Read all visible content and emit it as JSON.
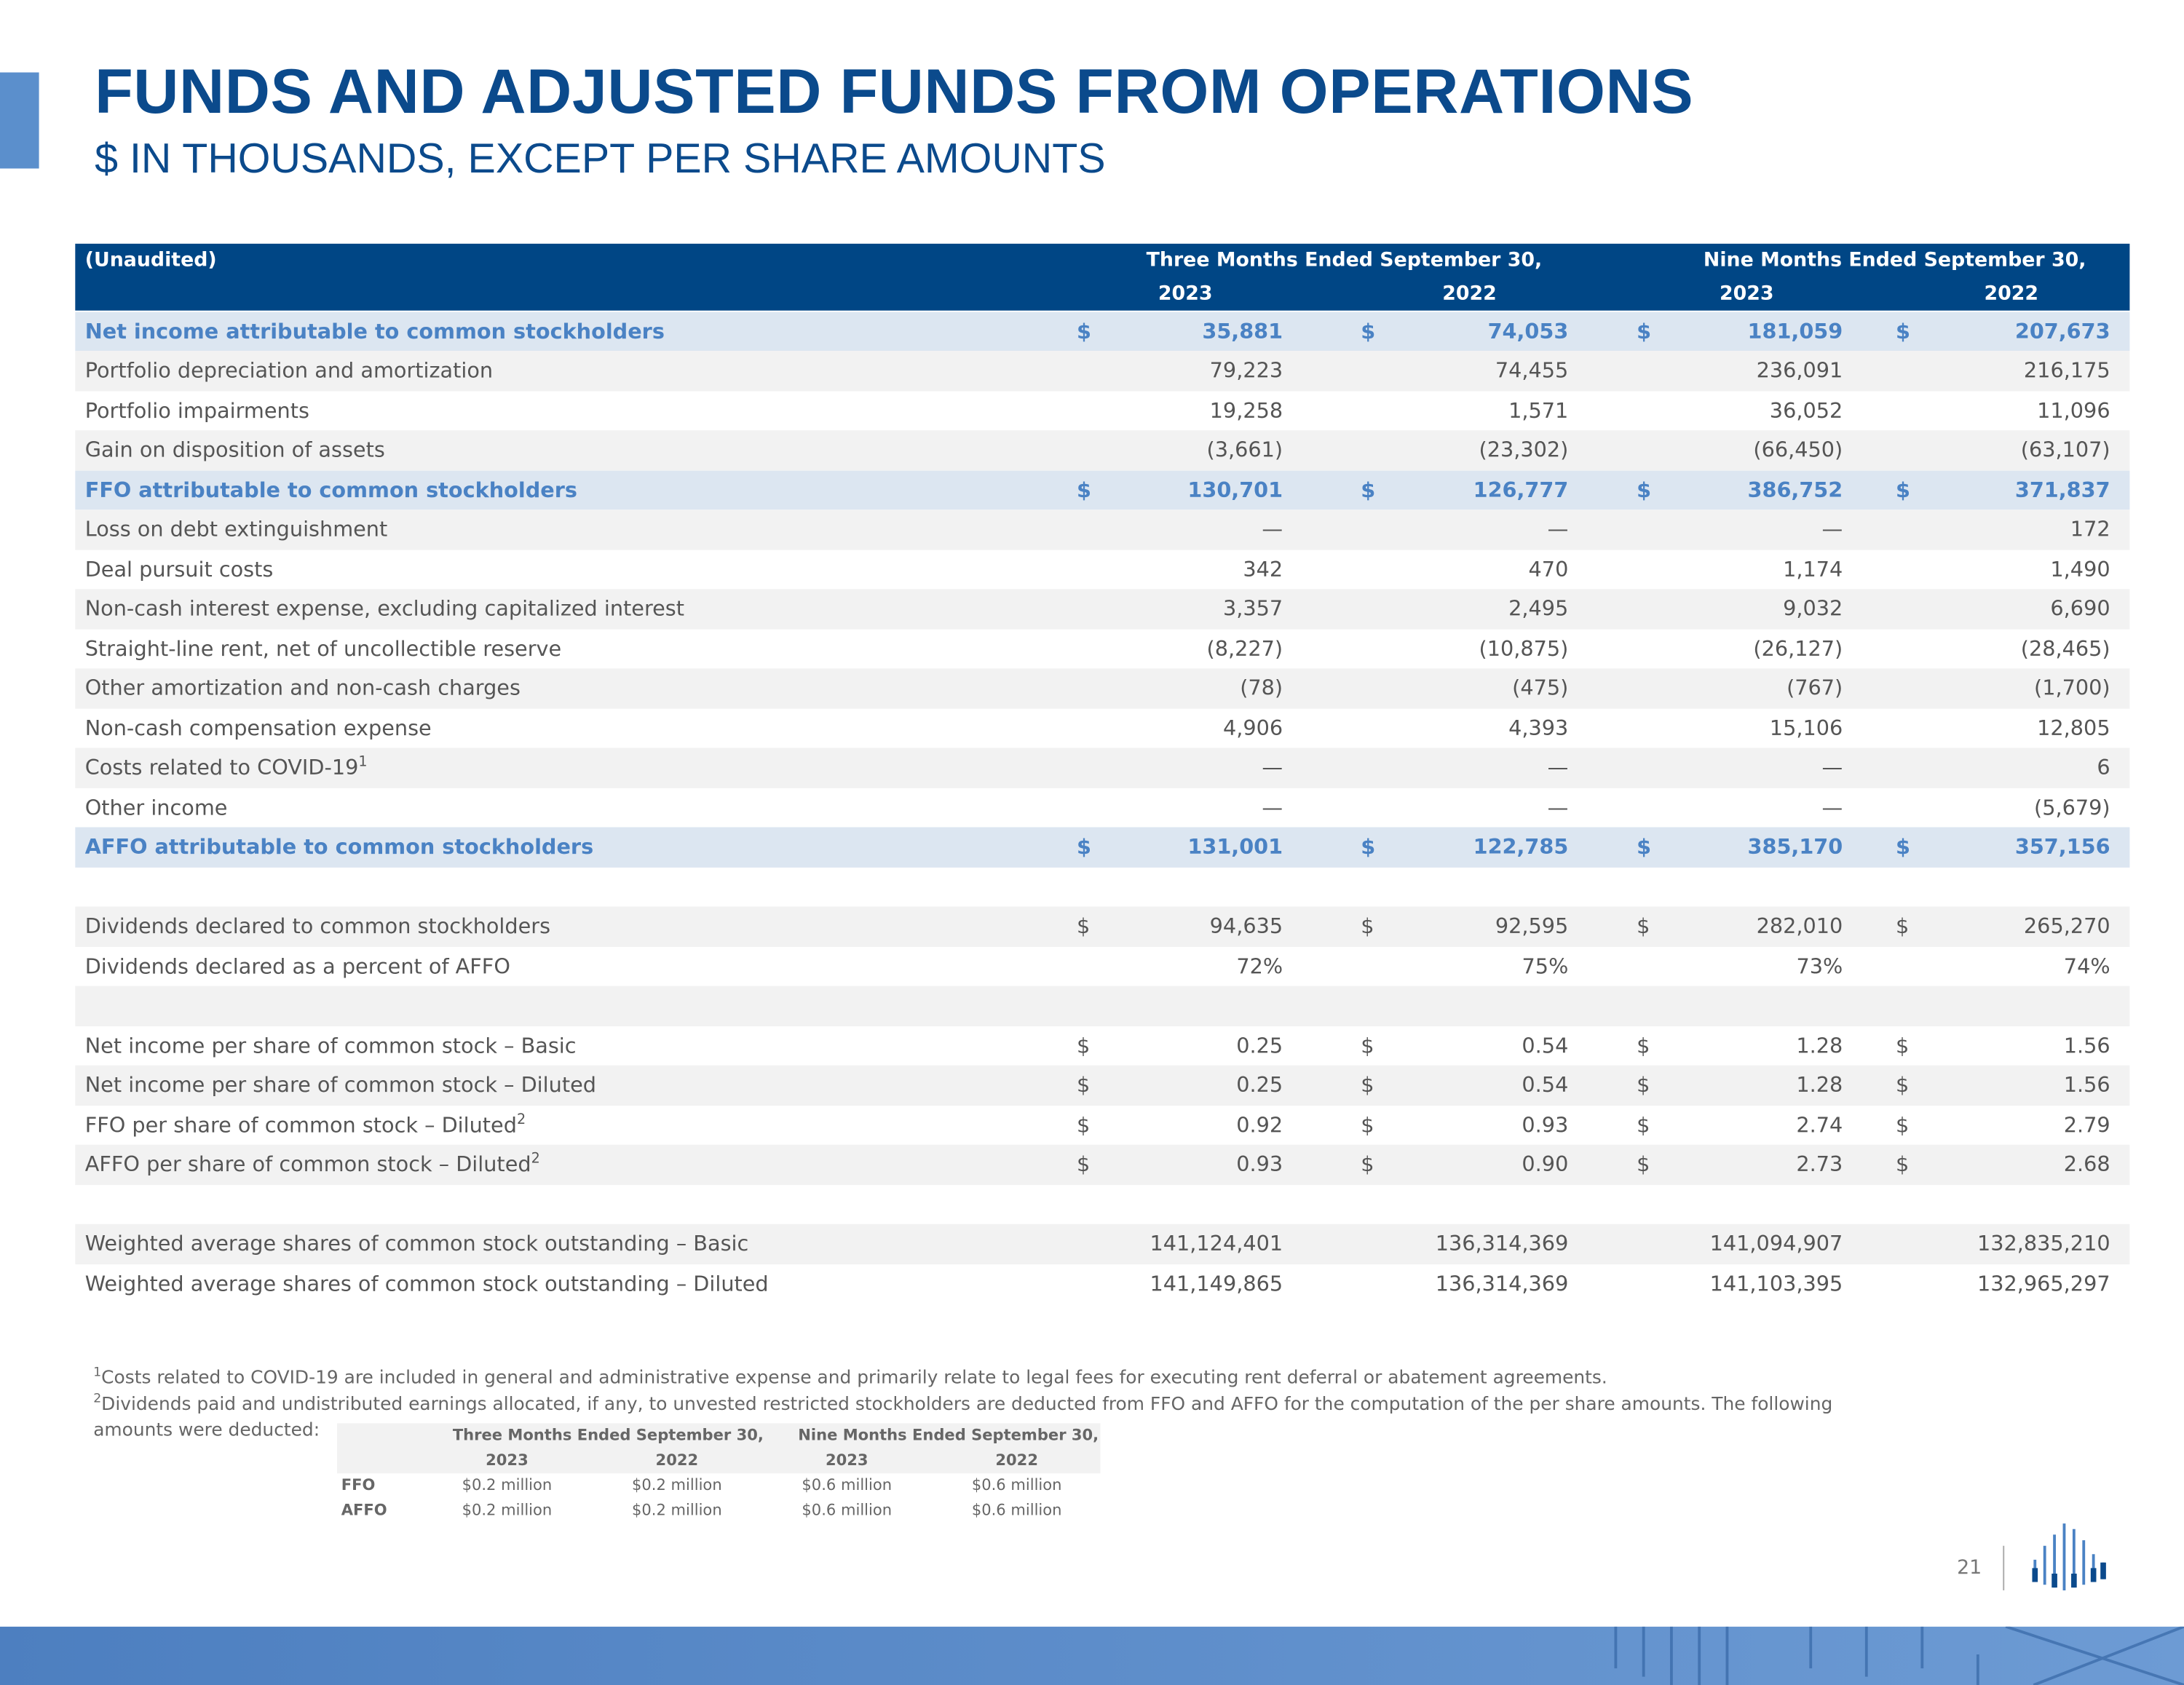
{
  "header": {
    "title": "FUNDS AND ADJUSTED FUNDS FROM OPERATIONS",
    "subtitle": "$ IN THOUSANDS, EXCEPT PER SHARE AMOUNTS"
  },
  "table": {
    "corner": "(Unaudited)",
    "groups": [
      "Three Months Ended September 30,",
      "Nine Months Ended September 30,"
    ],
    "years": [
      "2023",
      "2022",
      "2023",
      "2022"
    ],
    "rows": [
      {
        "label": "Net income attributable to common stockholders",
        "highlight": true,
        "currency": "$",
        "values": [
          "35,881",
          "74,053",
          "181,059",
          "207,673"
        ]
      },
      {
        "label": "Portfolio depreciation and amortization",
        "values": [
          "79,223",
          "74,455",
          "236,091",
          "216,175"
        ]
      },
      {
        "label": "Portfolio impairments",
        "values": [
          "19,258",
          "1,571",
          "36,052",
          "11,096"
        ]
      },
      {
        "label": "Gain on disposition of assets",
        "values": [
          "(3,661)",
          "(23,302)",
          "(66,450)",
          "(63,107)"
        ]
      },
      {
        "label": "FFO attributable to common stockholders",
        "highlight": true,
        "currency": "$",
        "values": [
          "130,701",
          "126,777",
          "386,752",
          "371,837"
        ]
      },
      {
        "label": "Loss on debt extinguishment",
        "values": [
          "—",
          "—",
          "—",
          "172"
        ]
      },
      {
        "label": "Deal pursuit costs",
        "values": [
          "342",
          "470",
          "1,174",
          "1,490"
        ]
      },
      {
        "label": "Non-cash interest expense, excluding capitalized interest",
        "values": [
          "3,357",
          "2,495",
          "9,032",
          "6,690"
        ]
      },
      {
        "label": "Straight-line rent, net of uncollectible reserve",
        "values": [
          "(8,227)",
          "(10,875)",
          "(26,127)",
          "(28,465)"
        ]
      },
      {
        "label": "Other amortization and non-cash charges",
        "values": [
          "(78)",
          "(475)",
          "(767)",
          "(1,700)"
        ]
      },
      {
        "label": "Non-cash compensation expense",
        "values": [
          "4,906",
          "4,393",
          "15,106",
          "12,805"
        ]
      },
      {
        "label": "Costs related to COVID-19",
        "sup": "1",
        "values": [
          "—",
          "—",
          "—",
          "6"
        ]
      },
      {
        "label": "Other income",
        "values": [
          "—",
          "—",
          "—",
          "(5,679)"
        ]
      },
      {
        "label": "AFFO attributable to common stockholders",
        "highlight": true,
        "currency": "$",
        "values": [
          "131,001",
          "122,785",
          "385,170",
          "357,156"
        ]
      },
      null,
      {
        "label": "Dividends declared to common stockholders",
        "currency": "$",
        "values": [
          "94,635",
          "92,595",
          "282,010",
          "265,270"
        ]
      },
      {
        "label": "Dividends declared as a percent of AFFO",
        "values": [
          "72%",
          "75%",
          "73%",
          "74%"
        ]
      },
      null,
      {
        "label": "Net income per share of common stock – Basic",
        "currency": "$",
        "values": [
          "0.25",
          "0.54",
          "1.28",
          "1.56"
        ]
      },
      {
        "label": "Net income per share of common stock – Diluted",
        "currency": "$",
        "values": [
          "0.25",
          "0.54",
          "1.28",
          "1.56"
        ]
      },
      {
        "label": "FFO per share of common stock – Diluted",
        "sup": "2",
        "currency": "$",
        "values": [
          "0.92",
          "0.93",
          "2.74",
          "2.79"
        ]
      },
      {
        "label": "AFFO per share of common stock – Diluted",
        "sup": "2",
        "currency": "$",
        "values": [
          "0.93",
          "0.90",
          "2.73",
          "2.68"
        ]
      },
      null,
      {
        "label": "Weighted average shares of common stock outstanding – Basic",
        "values": [
          "141,124,401",
          "136,314,369",
          "141,094,907",
          "132,835,210"
        ]
      },
      {
        "label": "Weighted average shares of common stock outstanding – Diluted",
        "values": [
          "141,149,865",
          "136,314,369",
          "141,103,395",
          "132,965,297"
        ]
      }
    ]
  },
  "footnotes": [
    {
      "marker": "1",
      "text": "Costs related to COVID-19 are included in general and administrative expense and primarily relate to legal fees for executing rent deferral or abatement agreements."
    },
    {
      "marker": "2",
      "text": "Dividends paid and undistributed earnings allocated, if any, to unvested restricted stockholders are deducted from FFO and AFFO for the computation of the per share amounts. The following amounts were deducted:"
    }
  ],
  "small_table": {
    "groups": [
      "Three Months Ended September 30,",
      "Nine Months Ended September 30,"
    ],
    "years": [
      "2023",
      "2022",
      "2023",
      "2022"
    ],
    "rows": [
      {
        "label": "FFO",
        "values": [
          "$0.2 million",
          "$0.2 million",
          "$0.6 million",
          "$0.6 million"
        ]
      },
      {
        "label": "AFFO",
        "values": [
          "$0.2 million",
          "$0.2 million",
          "$0.6 million",
          "$0.6 million"
        ]
      }
    ]
  },
  "page_number": "21"
}
